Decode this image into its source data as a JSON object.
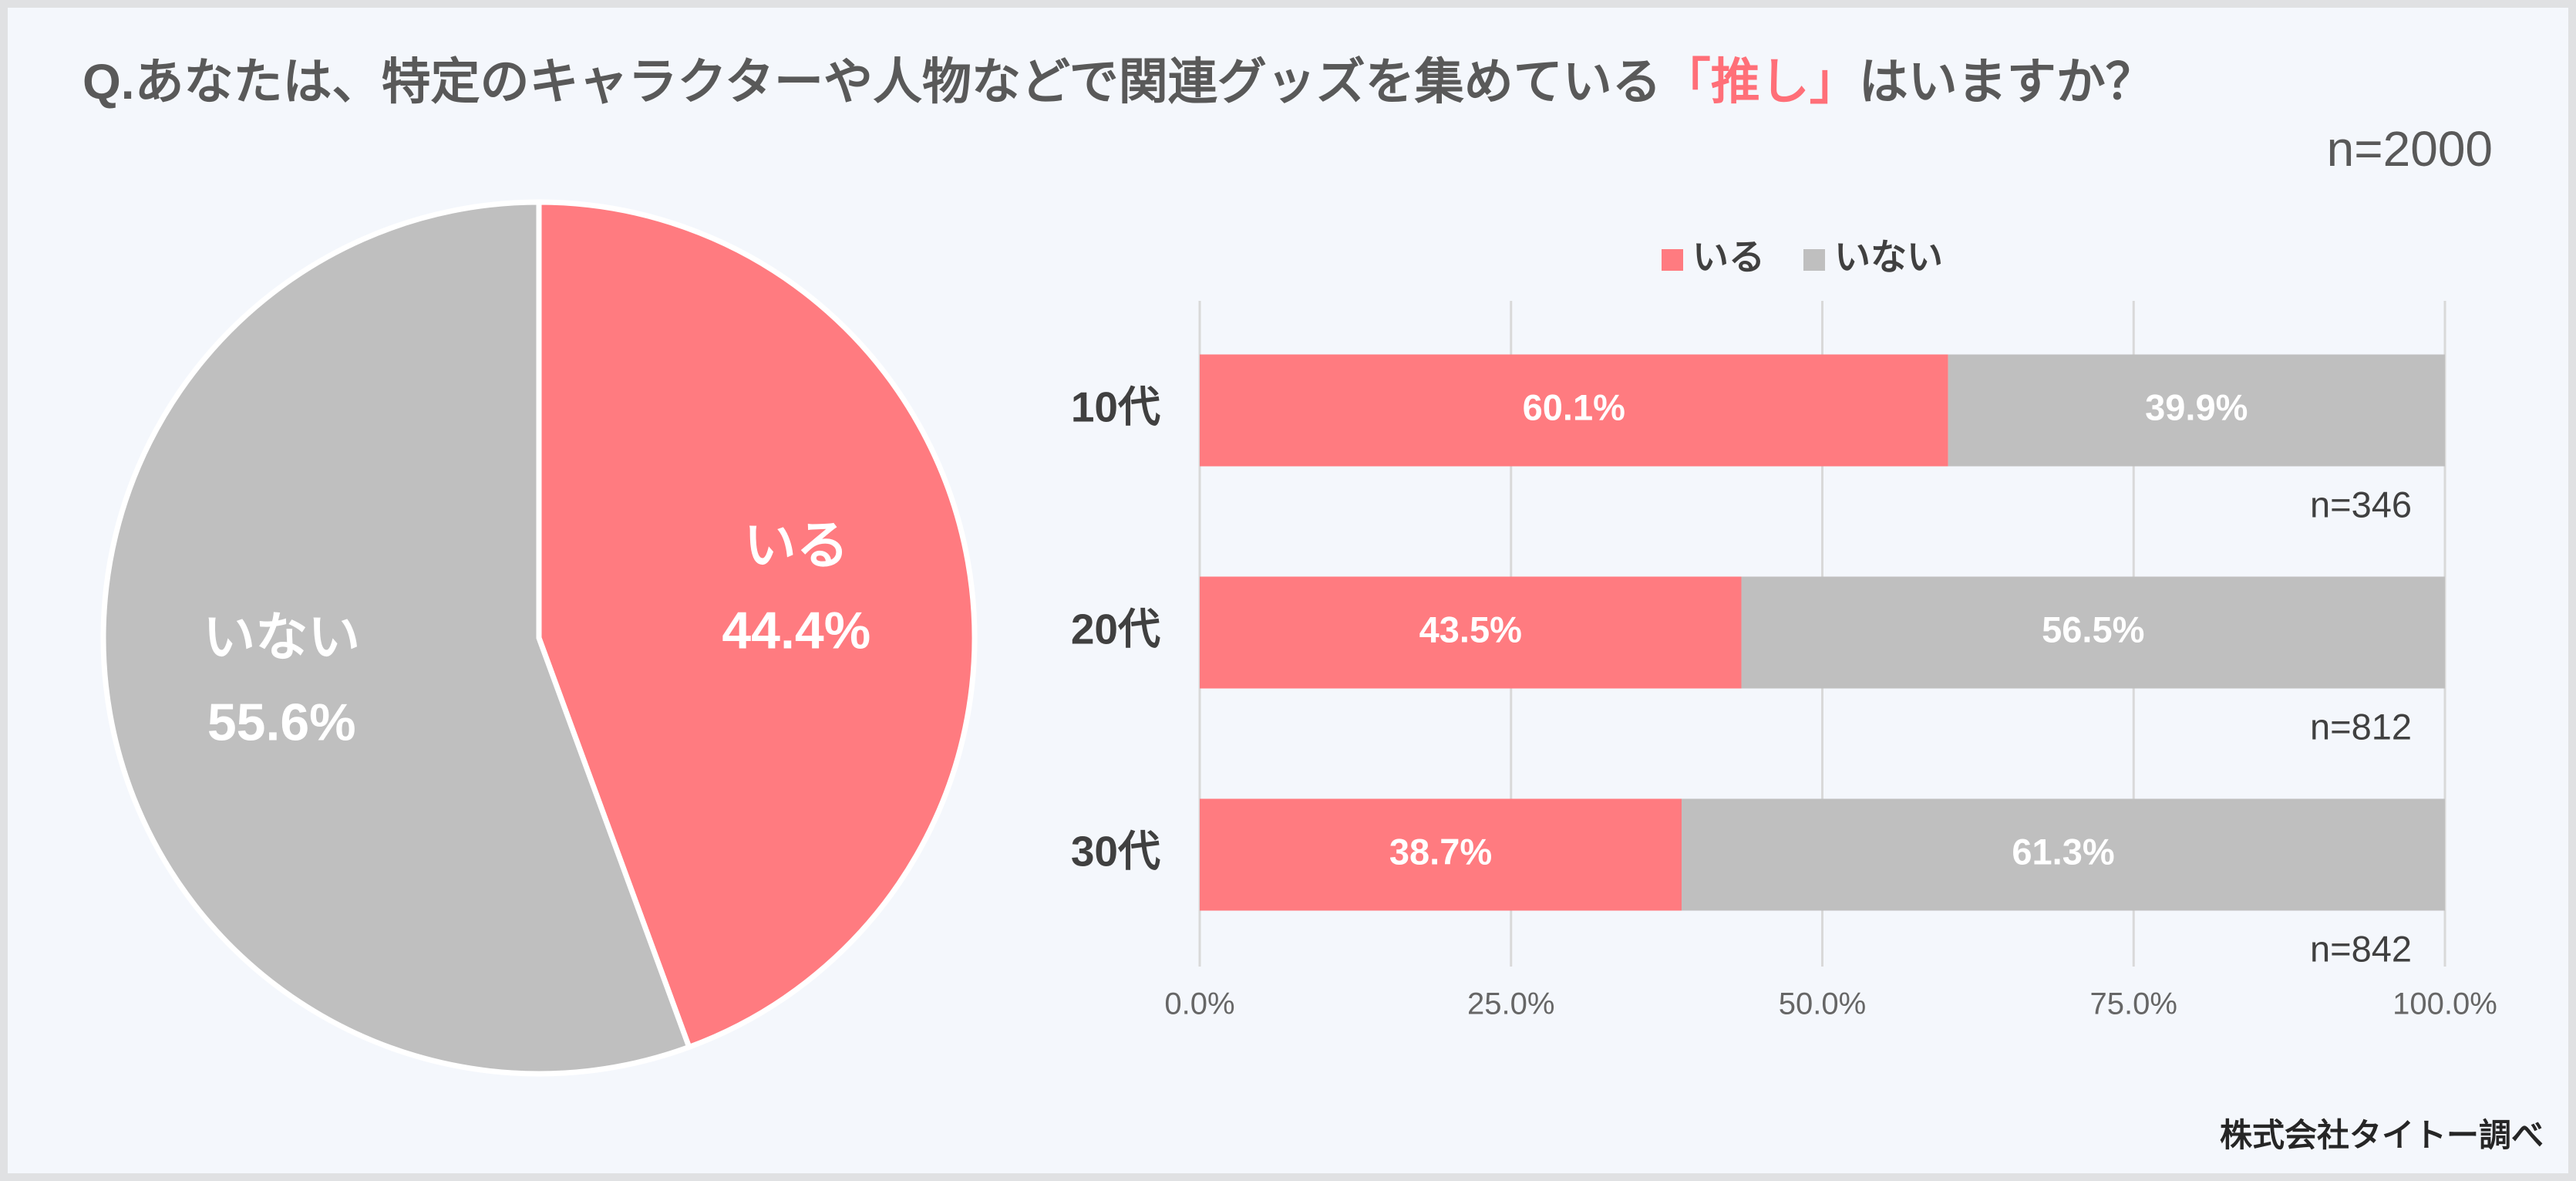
{
  "title_parts": [
    {
      "text": "Q.あなたは、特定のキャラクターや人物などで関連グッズを集めている",
      "color": "#595959"
    },
    {
      "text": "「推し」",
      "color": "#ff6f78"
    },
    {
      "text": "はいますか？",
      "color": "#595959"
    }
  ],
  "sample": "n=2000",
  "source": "株式会社タイトー調べ",
  "chart_data": [
    {
      "type": "pie",
      "categories": [
        "いる",
        "いない"
      ],
      "values": [
        44.4,
        55.6
      ],
      "value_labels": [
        "44.4%",
        "55.6%"
      ],
      "colors": [
        "#ff7b80",
        "#bfbfbf"
      ]
    },
    {
      "type": "bar",
      "orientation": "horizontal",
      "stacked": true,
      "categories": [
        "10代",
        "20代",
        "30代"
      ],
      "category_notes": [
        "n=346",
        "n=812",
        "n=842"
      ],
      "series": [
        {
          "name": "いる",
          "color": "#ff7b80",
          "values": [
            60.1,
            43.5,
            38.7
          ],
          "value_labels": [
            "60.1%",
            "43.5%",
            "38.7%"
          ]
        },
        {
          "name": "いない",
          "color": "#bfbfbf",
          "values": [
            39.9,
            56.5,
            61.3
          ],
          "value_labels": [
            "39.9%",
            "56.5%",
            "61.3%"
          ]
        }
      ],
      "xlim": [
        0,
        100
      ],
      "xticks": [
        {
          "value": 0,
          "label": "0.0%"
        },
        {
          "value": 25,
          "label": "25.0%"
        },
        {
          "value": 50,
          "label": "50.0%"
        },
        {
          "value": 75,
          "label": "75.0%"
        },
        {
          "value": 100,
          "label": "100.0%"
        }
      ],
      "grid": true,
      "legend": "top"
    }
  ]
}
